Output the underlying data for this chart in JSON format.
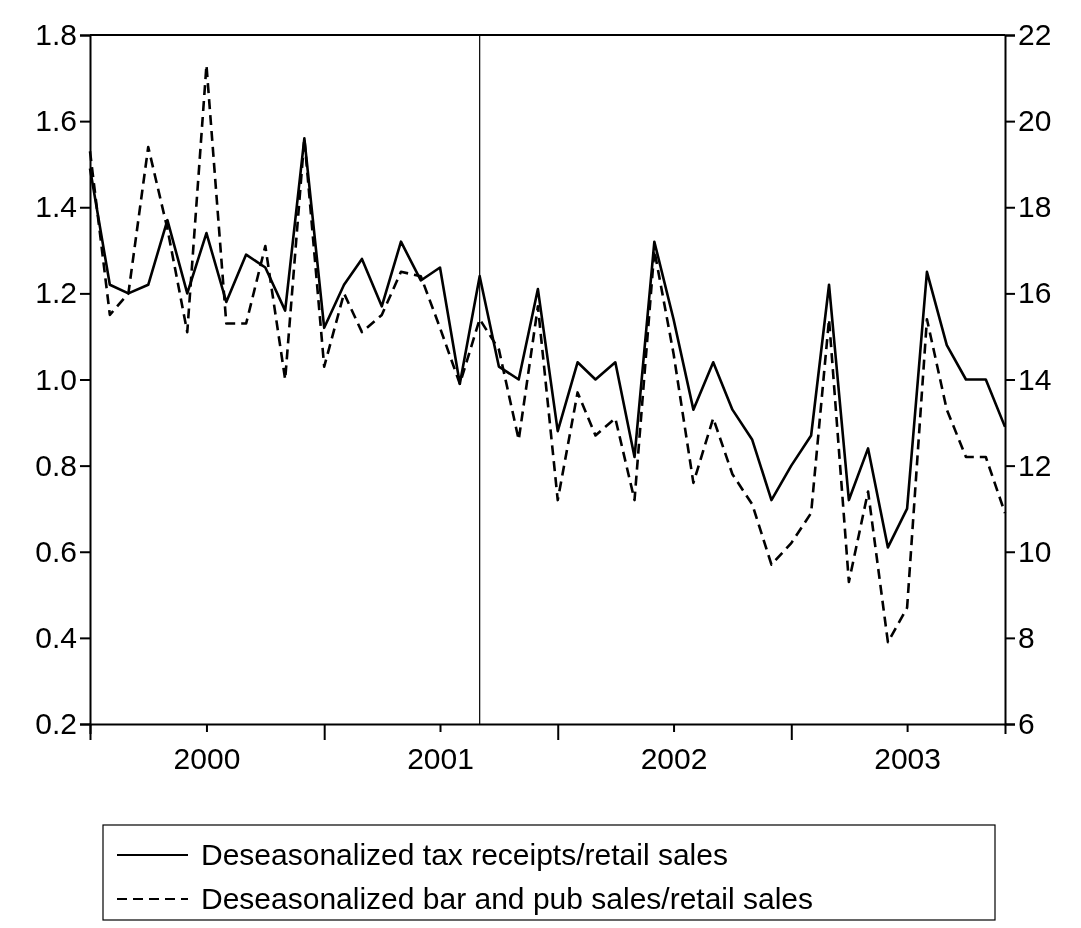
{
  "chart_data": {
    "type": "line",
    "x": [
      "2000-01",
      "2000-02",
      "2000-03",
      "2000-04",
      "2000-05",
      "2000-06",
      "2000-07",
      "2000-08",
      "2000-09",
      "2000-10",
      "2000-11",
      "2000-12",
      "2001-01",
      "2001-02",
      "2001-03",
      "2001-04",
      "2001-05",
      "2001-06",
      "2001-07",
      "2001-08",
      "2001-09",
      "2001-10",
      "2001-11",
      "2001-12",
      "2002-01",
      "2002-02",
      "2002-03",
      "2002-04",
      "2002-05",
      "2002-06",
      "2002-07",
      "2002-08",
      "2002-09",
      "2002-10",
      "2002-11",
      "2002-12",
      "2003-01",
      "2003-02",
      "2003-03",
      "2003-04",
      "2003-05",
      "2003-06",
      "2003-07",
      "2003-08",
      "2003-09",
      "2003-10",
      "2003-11",
      "2003-12"
    ],
    "series": [
      {
        "name": "Deseasonalized tax receipts/retail sales",
        "color": "#000000",
        "line_style": "solid",
        "values": [
          1.49,
          1.22,
          1.2,
          1.22,
          1.37,
          1.2,
          1.34,
          1.18,
          1.29,
          1.26,
          1.16,
          1.56,
          1.12,
          1.22,
          1.28,
          1.17,
          1.32,
          1.23,
          1.26,
          0.99,
          1.24,
          1.03,
          1.0,
          1.21,
          0.88,
          1.04,
          1.0,
          1.04,
          0.82,
          1.32,
          1.14,
          0.93,
          1.04,
          0.93,
          0.86,
          0.72,
          0.8,
          0.87,
          1.22,
          0.72,
          0.84,
          0.61,
          0.7,
          1.25,
          1.08,
          1.0,
          1.0,
          0.89
        ]
      },
      {
        "name": "Deseasonalized bar and pub sales/retail sales",
        "color": "#000000",
        "line_style": "dashed",
        "axis": "y2",
        "values": [
          19.3,
          15.5,
          16.0,
          19.4,
          17.5,
          15.1,
          21.3,
          15.3,
          15.3,
          17.1,
          14.0,
          19.6,
          14.3,
          16.0,
          15.1,
          15.5,
          16.5,
          16.4,
          15.2,
          13.9,
          15.4,
          14.7,
          12.6,
          15.7,
          11.2,
          13.7,
          12.7,
          13.1,
          11.2,
          17.0,
          14.6,
          11.6,
          13.1,
          11.8,
          11.1,
          9.7,
          10.2,
          10.9,
          15.4,
          9.3,
          11.4,
          7.9,
          8.7,
          15.4,
          13.3,
          12.2,
          12.2,
          10.9
        ]
      }
    ],
    "xlim": [
      "2000-01",
      "2003-12"
    ],
    "xticks": [
      {
        "value": "2000-01",
        "label": null
      },
      {
        "value": "2000-07",
        "label": "2000"
      },
      {
        "value": "2001-01",
        "label": null
      },
      {
        "value": "2001-07",
        "label": "2001"
      },
      {
        "value": "2002-01",
        "label": null
      },
      {
        "value": "2002-07",
        "label": "2002"
      },
      {
        "value": "2003-01",
        "label": null
      },
      {
        "value": "2003-07",
        "label": "2003"
      }
    ],
    "ylim": [
      0.2,
      1.8
    ],
    "yticks": [
      {
        "value": 0.2,
        "label": "0.2"
      },
      {
        "value": 0.4,
        "label": "0.4"
      },
      {
        "value": 0.6,
        "label": "0.6"
      },
      {
        "value": 0.8,
        "label": "0.8"
      },
      {
        "value": 1.0,
        "label": "1.0"
      },
      {
        "value": 1.2,
        "label": "1.2"
      },
      {
        "value": 1.4,
        "label": "1.4"
      },
      {
        "value": 1.6,
        "label": "1.6"
      },
      {
        "value": 1.8,
        "label": "1.8"
      }
    ],
    "y2lim": [
      6,
      22
    ],
    "y2ticks": [
      6,
      8,
      10,
      12,
      14,
      16,
      18,
      20,
      22
    ],
    "ref_lines": [
      {
        "axis": "x",
        "value": "2001-09",
        "color": "#000000"
      }
    ],
    "grid": false,
    "legend": "bottom"
  }
}
